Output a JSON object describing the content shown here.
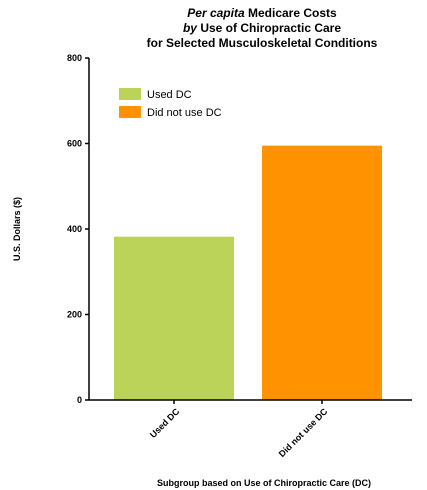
{
  "chart_data": {
    "type": "bar",
    "title": {
      "line1_italic": "Per capita",
      "line1_rest": " Medicare Costs",
      "line2_italic": "by",
      "line2_rest": " Use of Chiropractic Care",
      "line3": "for Selected Musculoskeletal Conditions"
    },
    "xlabel": "Subgroup based on Use of Chiropractic Care (DC)",
    "ylabel": "U.S. Dollars ($)",
    "ylim": [
      0,
      800
    ],
    "yticks": [
      0,
      200,
      400,
      600,
      800
    ],
    "categories": [
      "Used DC",
      "Did not use DC"
    ],
    "values": [
      382,
      595
    ],
    "colors": [
      "#bcd35a",
      "#ff9200"
    ],
    "legend": {
      "placement": "top-left",
      "entries": [
        "Used DC",
        "Did not use DC"
      ]
    },
    "grid": false
  }
}
